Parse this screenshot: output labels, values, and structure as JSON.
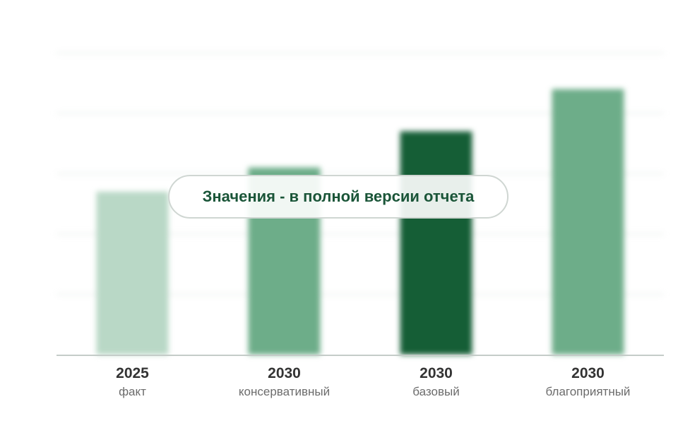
{
  "chart_data": {
    "type": "bar",
    "categories": [
      {
        "year": "2025",
        "label": "факт"
      },
      {
        "year": "2030",
        "label": "консервативный"
      },
      {
        "year": "2030",
        "label": "базовый"
      },
      {
        "year": "2030",
        "label": "благоприятный"
      }
    ],
    "values": [
      2.7,
      3.1,
      3.7,
      4.4
    ],
    "colors": [
      "#b9d8c6",
      "#6dad89",
      "#155e36",
      "#6dad89"
    ],
    "ylim": [
      0,
      5
    ],
    "grid": true,
    "title": "",
    "xlabel": "",
    "ylabel": ""
  },
  "overlay": {
    "text": "Значения - в полной версии отчета"
  }
}
